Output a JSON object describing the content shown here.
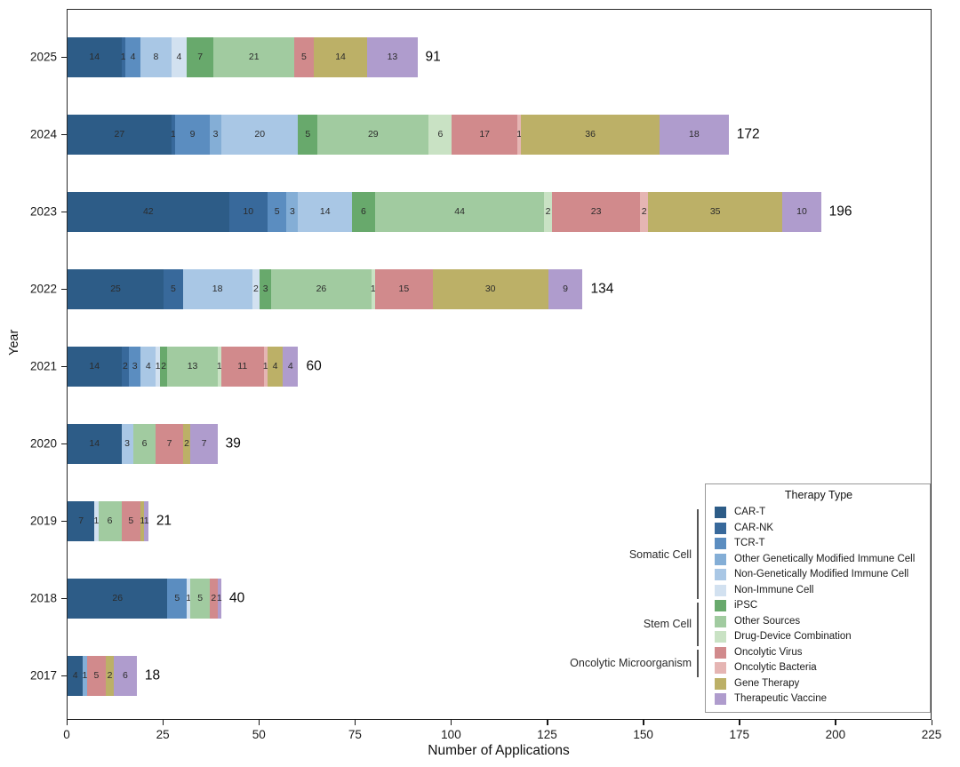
{
  "chart_data": {
    "type": "bar",
    "orientation": "horizontal-stacked",
    "xlabel": "Number of Applications",
    "ylabel": "Year",
    "legend_title": "Therapy Type",
    "xlim": [
      0,
      225
    ],
    "xticks": [
      0,
      25,
      50,
      75,
      100,
      125,
      150,
      175,
      200,
      225
    ],
    "grid": false,
    "legend_position": "lower right",
    "therapy_types": [
      {
        "key": "car_t",
        "label": "CAR-T",
        "color": "#2d5c87",
        "group": "Somatic Cell"
      },
      {
        "key": "car_nk",
        "label": "CAR-NK",
        "color": "#38699b",
        "group": "Somatic Cell"
      },
      {
        "key": "tcr_t",
        "label": "TCR-T",
        "color": "#5b8dc0",
        "group": "Somatic Cell"
      },
      {
        "key": "other_gm",
        "label": "Other Genetically Modified Immune Cell",
        "color": "#84aed6",
        "group": "Somatic Cell"
      },
      {
        "key": "non_gm",
        "label": "Non-Genetically Modified Immune Cell",
        "color": "#a9c7e5",
        "group": "Somatic Cell"
      },
      {
        "key": "non_immune",
        "label": "Non-Immune Cell",
        "color": "#d2e1f0",
        "group": "Somatic Cell"
      },
      {
        "key": "ipsc",
        "label": "iPSC",
        "color": "#68a96c",
        "group": "Stem Cell"
      },
      {
        "key": "other_src",
        "label": "Other Sources",
        "color": "#a1cba0",
        "group": "Stem Cell"
      },
      {
        "key": "drug_device",
        "label": "Drug-Device Combination",
        "color": "#c9e2c4",
        "group": "Stem Cell"
      },
      {
        "key": "onc_virus",
        "label": "Oncolytic Virus",
        "color": "#d18a8c",
        "group": "Oncolytic Microorganism"
      },
      {
        "key": "onc_bacteria",
        "label": "Oncolytic Bacteria",
        "color": "#e5b5b3",
        "group": "Oncolytic Microorganism"
      },
      {
        "key": "gene_therapy",
        "label": "Gene Therapy",
        "color": "#bcb067",
        "group": ""
      },
      {
        "key": "vaccine",
        "label": "Therapeutic Vaccine",
        "color": "#af9ccd",
        "group": ""
      }
    ],
    "groups": [
      {
        "label": "Somatic Cell",
        "first_item": 0,
        "last_item": 5
      },
      {
        "label": "Stem Cell",
        "first_item": 6,
        "last_item": 8
      },
      {
        "label": "Oncolytic Microorganism",
        "first_item": 9,
        "last_item": 10
      }
    ],
    "years": [
      {
        "year": "2025",
        "total": 91,
        "segments": [
          [
            "car_t",
            14
          ],
          [
            "car_nk",
            1
          ],
          [
            "tcr_t",
            4
          ],
          [
            "non_gm",
            8
          ],
          [
            "non_immune",
            4
          ],
          [
            "ipsc",
            7
          ],
          [
            "other_src",
            21
          ],
          [
            "onc_virus",
            5
          ],
          [
            "gene_therapy",
            14
          ],
          [
            "vaccine",
            13
          ]
        ]
      },
      {
        "year": "2024",
        "total": 172,
        "segments": [
          [
            "car_t",
            27
          ],
          [
            "car_nk",
            1
          ],
          [
            "tcr_t",
            9
          ],
          [
            "other_gm",
            3
          ],
          [
            "non_gm",
            20
          ],
          [
            "ipsc",
            5
          ],
          [
            "other_src",
            29
          ],
          [
            "drug_device",
            6
          ],
          [
            "onc_virus",
            17
          ],
          [
            "onc_bacteria",
            1
          ],
          [
            "gene_therapy",
            36
          ],
          [
            "vaccine",
            18
          ]
        ]
      },
      {
        "year": "2023",
        "total": 196,
        "segments": [
          [
            "car_t",
            42
          ],
          [
            "car_nk",
            10
          ],
          [
            "tcr_t",
            5
          ],
          [
            "other_gm",
            3
          ],
          [
            "non_gm",
            14
          ],
          [
            "ipsc",
            6
          ],
          [
            "other_src",
            44
          ],
          [
            "drug_device",
            2
          ],
          [
            "onc_virus",
            23
          ],
          [
            "onc_bacteria",
            2
          ],
          [
            "gene_therapy",
            35
          ],
          [
            "vaccine",
            10
          ]
        ]
      },
      {
        "year": "2022",
        "total": 134,
        "segments": [
          [
            "car_t",
            25
          ],
          [
            "car_nk",
            5
          ],
          [
            "non_gm",
            18
          ],
          [
            "non_immune",
            2
          ],
          [
            "ipsc",
            3
          ],
          [
            "other_src",
            26
          ],
          [
            "drug_device",
            1
          ],
          [
            "onc_virus",
            15
          ],
          [
            "gene_therapy",
            30
          ],
          [
            "vaccine",
            9
          ]
        ]
      },
      {
        "year": "2021",
        "total": 60,
        "segments": [
          [
            "car_t",
            14
          ],
          [
            "car_nk",
            2
          ],
          [
            "tcr_t",
            3
          ],
          [
            "non_gm",
            4
          ],
          [
            "non_immune",
            1
          ],
          [
            "ipsc",
            2
          ],
          [
            "other_src",
            13
          ],
          [
            "drug_device",
            1
          ],
          [
            "onc_virus",
            11
          ],
          [
            "onc_bacteria",
            1
          ],
          [
            "gene_therapy",
            4
          ],
          [
            "vaccine",
            4
          ]
        ]
      },
      {
        "year": "2020",
        "total": 39,
        "segments": [
          [
            "car_t",
            14
          ],
          [
            "non_gm",
            3
          ],
          [
            "other_src",
            6
          ],
          [
            "onc_virus",
            7
          ],
          [
            "gene_therapy",
            2
          ],
          [
            "vaccine",
            7
          ]
        ]
      },
      {
        "year": "2019",
        "total": 21,
        "segments": [
          [
            "car_t",
            7
          ],
          [
            "non_immune",
            1
          ],
          [
            "other_src",
            6
          ],
          [
            "onc_virus",
            5
          ],
          [
            "gene_therapy",
            1
          ],
          [
            "vaccine",
            1
          ]
        ]
      },
      {
        "year": "2018",
        "total": 40,
        "segments": [
          [
            "car_t",
            26
          ],
          [
            "tcr_t",
            5
          ],
          [
            "non_immune",
            1
          ],
          [
            "other_src",
            5
          ],
          [
            "onc_virus",
            2
          ],
          [
            "vaccine",
            1
          ]
        ]
      },
      {
        "year": "2017",
        "total": 18,
        "segments": [
          [
            "car_t",
            4
          ],
          [
            "other_gm",
            1
          ],
          [
            "onc_virus",
            5
          ],
          [
            "gene_therapy",
            2
          ],
          [
            "vaccine",
            6
          ]
        ]
      }
    ]
  }
}
